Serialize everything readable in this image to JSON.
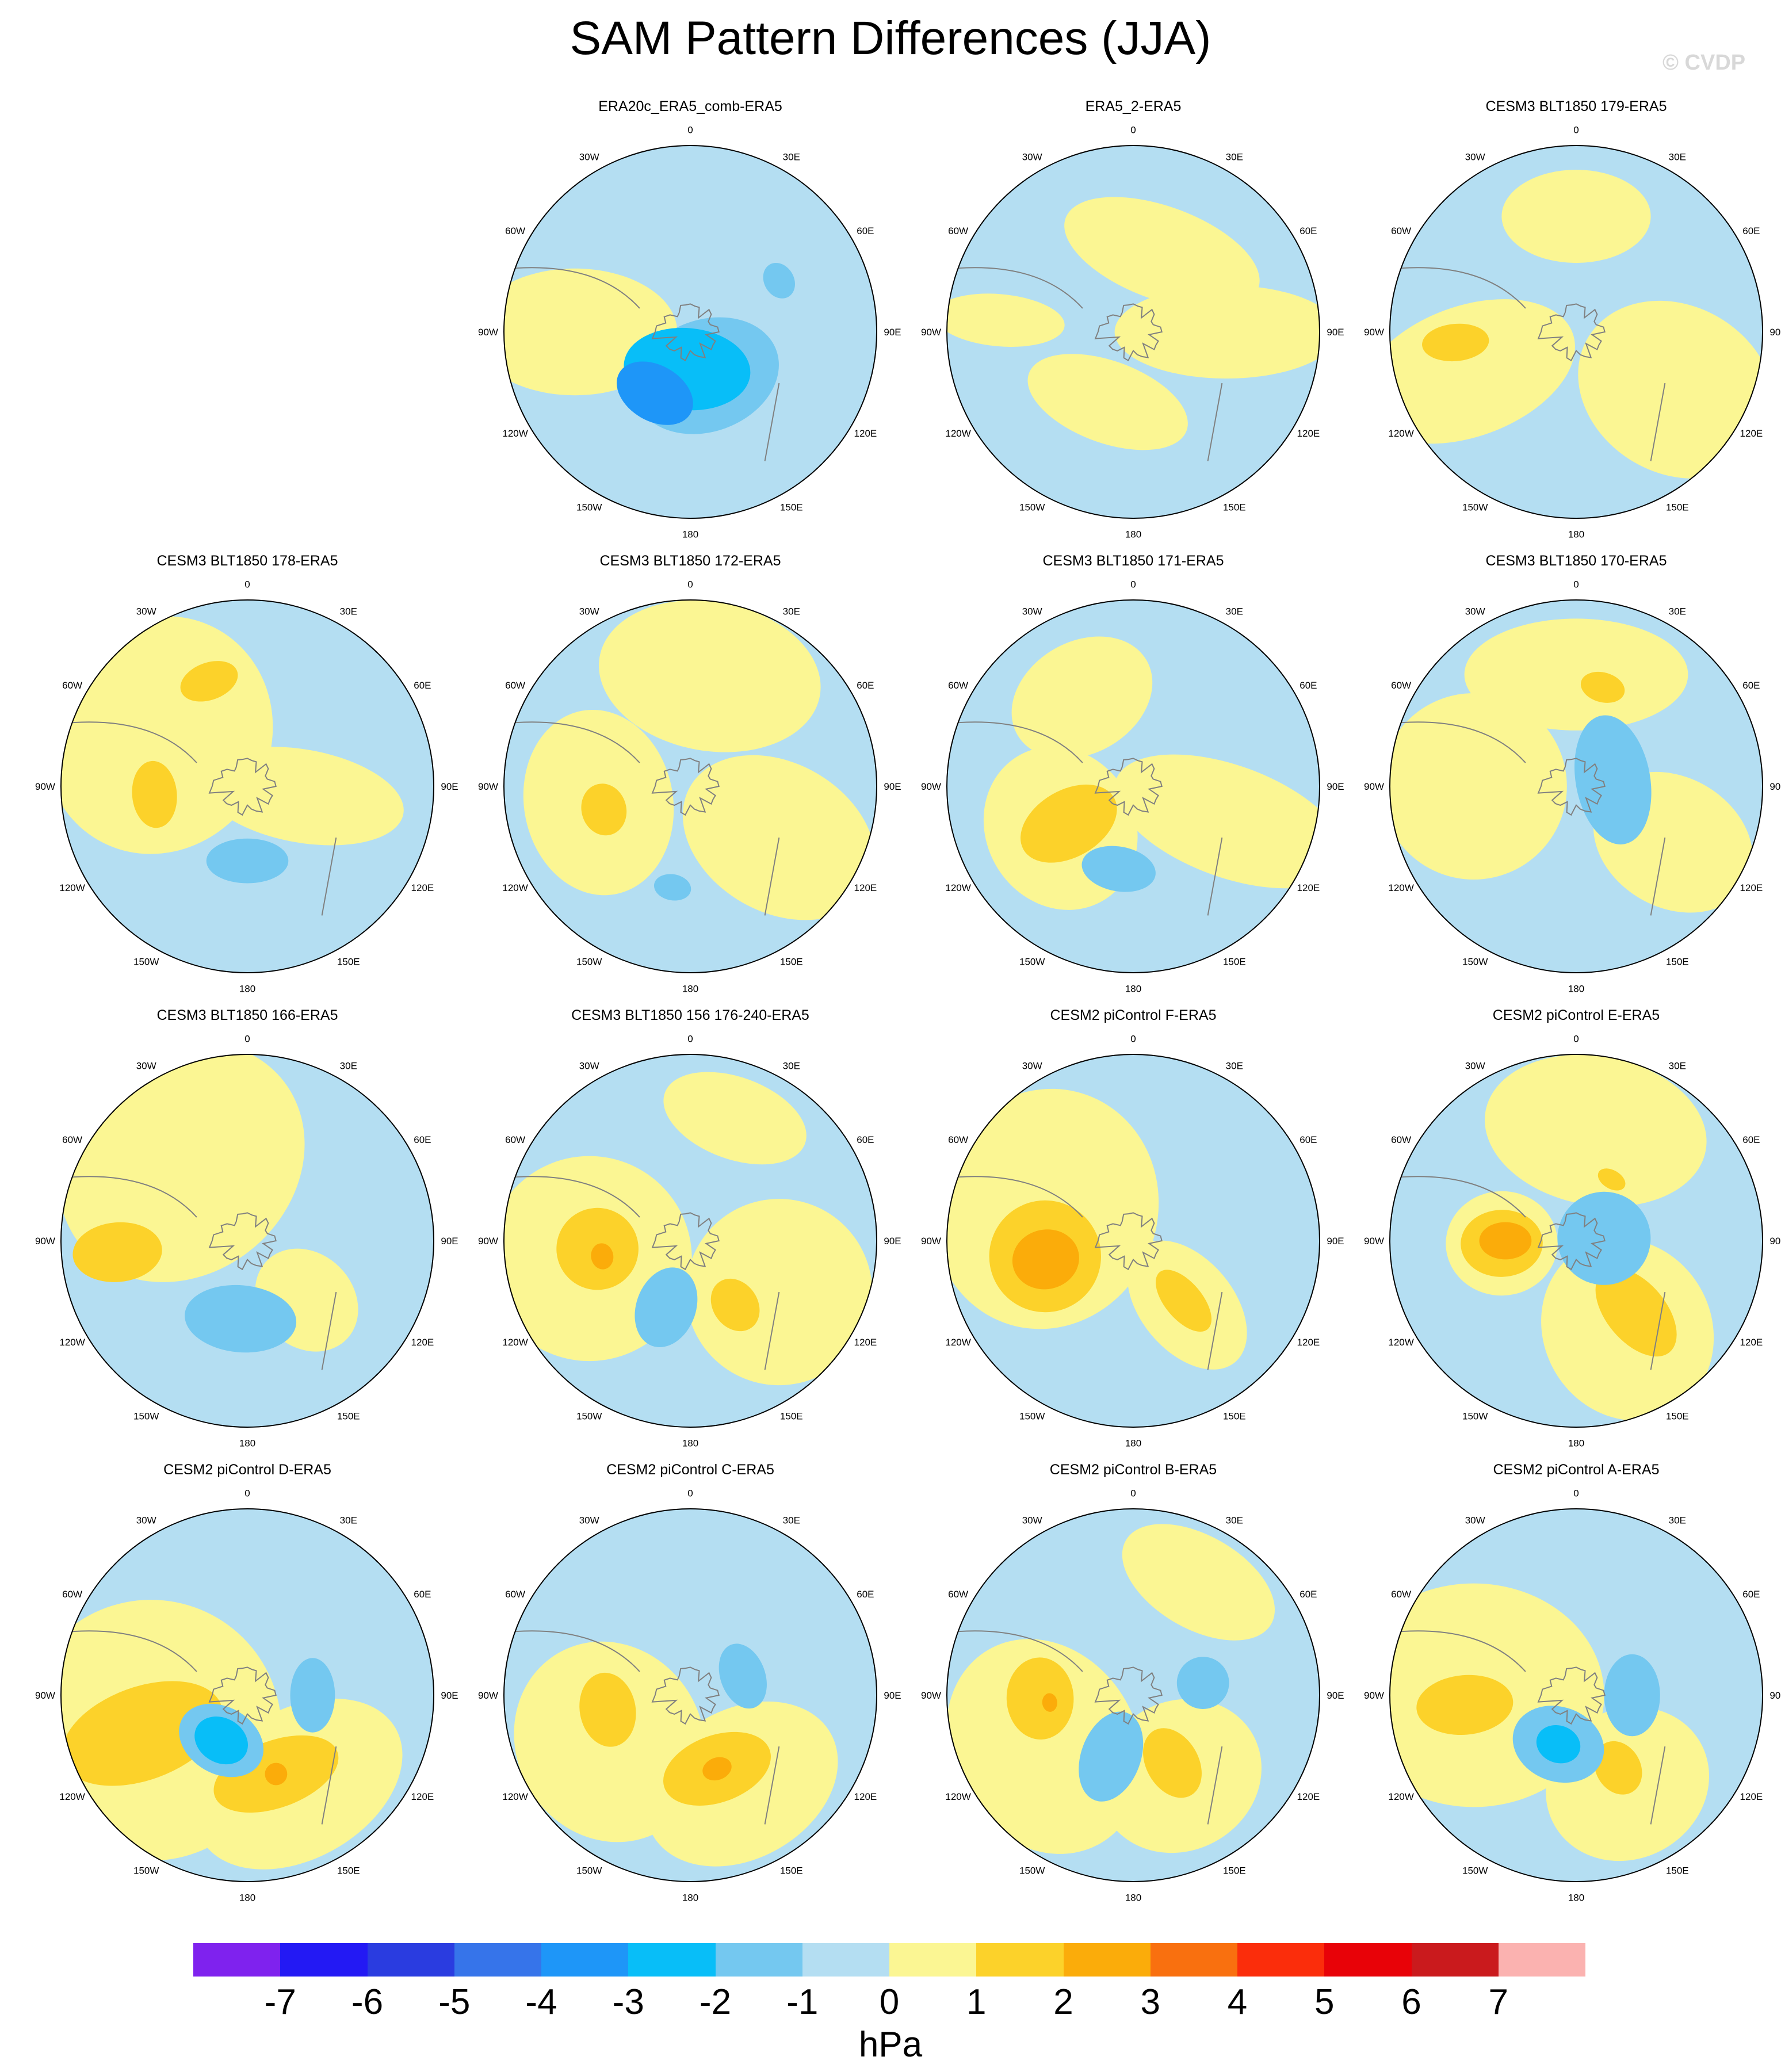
{
  "title": "SAM Pattern Differences (JJA)",
  "watermark": "© CVDP",
  "units": "hPa",
  "colors": {
    "levels": [
      "#7f22ee",
      "#2319f4",
      "#2a3ce0",
      "#3674ea",
      "#1e96f8",
      "#08bef8",
      "#74c8f0",
      "#b4def2",
      "#fbf693",
      "#fcd22a",
      "#fbac0a",
      "#f9700f",
      "#fb2d0b",
      "#e80208",
      "#ca1a1d",
      "#fbb2b0"
    ],
    "coast": "#808080",
    "border": "#000000"
  },
  "colorbar_ticks": [
    "-7",
    "-6",
    "-5",
    "-4",
    "-3",
    "-2",
    "-1",
    "0",
    "1",
    "2",
    "3",
    "4",
    "5",
    "6",
    "7"
  ],
  "map_labels": {
    "lon_0": "0",
    "lon_30e": "30E",
    "lon_60e": "60E",
    "lon_90e": "90E",
    "lon_120e": "120E",
    "lon_150e": "150E",
    "lon_180": "180",
    "lon_150w": "150W",
    "lon_120w": "120W",
    "lon_90w": "90W",
    "lon_60w": "60W",
    "lon_30w": "30W"
  },
  "panels": [
    {
      "title": "ERA20c_ERA5_comb-ERA5",
      "features": [
        {
          "lon": 270,
          "r": 0.62,
          "w": 0.34,
          "h": 0.55,
          "v": 0.5
        },
        {
          "lon": 160,
          "r": 0.25,
          "w": 0.4,
          "h": 0.3,
          "v": -1.5
        },
        {
          "lon": 185,
          "r": 0.2,
          "w": 0.34,
          "h": 0.22,
          "v": -2.5
        },
        {
          "lon": 210,
          "r": 0.38,
          "w": 0.22,
          "h": 0.15,
          "v": -3.4
        },
        {
          "lon": 60,
          "r": 0.55,
          "w": 0.1,
          "h": 0.08,
          "v": -1.5
        }
      ]
    },
    {
      "title": "ERA5_2-ERA5",
      "features": [
        {
          "lon": 20,
          "r": 0.45,
          "w": 0.55,
          "h": 0.25,
          "v": 0.5
        },
        {
          "lon": 90,
          "r": 0.5,
          "w": 0.25,
          "h": 0.6,
          "v": 0.5
        },
        {
          "lon": 200,
          "r": 0.4,
          "w": 0.45,
          "h": 0.22,
          "v": 0.5
        },
        {
          "lon": 275,
          "r": 0.72,
          "w": 0.14,
          "h": 0.35,
          "v": 0.5
        }
      ]
    },
    {
      "title": "CESM3 BLT1850 179-ERA5",
      "features": [
        {
          "lon": 0,
          "r": 0.62,
          "w": 0.4,
          "h": 0.25,
          "v": 0.5
        },
        {
          "lon": 120,
          "r": 0.62,
          "w": 0.45,
          "h": 0.55,
          "v": 0.5
        },
        {
          "lon": 250,
          "r": 0.62,
          "w": 0.35,
          "h": 0.6,
          "v": 0.5
        },
        {
          "lon": 265,
          "r": 0.65,
          "w": 0.1,
          "h": 0.18,
          "v": 1.5
        }
      ]
    },
    {
      "title": "CESM3 BLT1850 178-ERA5",
      "features": [
        {
          "lon": 300,
          "r": 0.55,
          "w": 0.65,
          "h": 0.6,
          "v": 0.5
        },
        {
          "lon": 100,
          "r": 0.3,
          "w": 0.25,
          "h": 0.55,
          "v": 0.5
        },
        {
          "lon": 340,
          "r": 0.6,
          "w": 0.16,
          "h": 0.1,
          "v": 1.5
        },
        {
          "lon": 265,
          "r": 0.5,
          "w": 0.18,
          "h": 0.12,
          "v": 1.5
        },
        {
          "lon": 180,
          "r": 0.4,
          "w": 0.22,
          "h": 0.12,
          "v": -1.5
        }
      ]
    },
    {
      "title": "CESM3 BLT1850 172-ERA5",
      "features": [
        {
          "lon": 10,
          "r": 0.6,
          "w": 0.6,
          "h": 0.4,
          "v": 0.5
        },
        {
          "lon": 120,
          "r": 0.55,
          "w": 0.4,
          "h": 0.55,
          "v": 0.5
        },
        {
          "lon": 260,
          "r": 0.5,
          "w": 0.5,
          "h": 0.4,
          "v": 0.5
        },
        {
          "lon": 255,
          "r": 0.48,
          "w": 0.14,
          "h": 0.12,
          "v": 1.5
        },
        {
          "lon": 190,
          "r": 0.55,
          "w": 0.1,
          "h": 0.07,
          "v": -1.5
        }
      ]
    },
    {
      "title": "CESM3 BLT1850 171-ERA5",
      "features": [
        {
          "lon": 330,
          "r": 0.55,
          "w": 0.4,
          "h": 0.3,
          "v": 0.5
        },
        {
          "lon": 110,
          "r": 0.55,
          "w": 0.3,
          "h": 0.65,
          "v": 0.5
        },
        {
          "lon": 240,
          "r": 0.45,
          "w": 0.45,
          "h": 0.4,
          "v": 0.5
        },
        {
          "lon": 240,
          "r": 0.4,
          "w": 0.18,
          "h": 0.28,
          "v": 1.5
        },
        {
          "lon": 190,
          "r": 0.45,
          "w": 0.2,
          "h": 0.12,
          "v": -1.5
        }
      ]
    },
    {
      "title": "CESM3 BLT1850 170-ERA5",
      "features": [
        {
          "lon": 0,
          "r": 0.6,
          "w": 0.6,
          "h": 0.3,
          "v": 0.5
        },
        {
          "lon": 270,
          "r": 0.55,
          "w": 0.5,
          "h": 0.5,
          "v": 0.5
        },
        {
          "lon": 120,
          "r": 0.6,
          "w": 0.35,
          "h": 0.45,
          "v": 0.5
        },
        {
          "lon": 15,
          "r": 0.55,
          "w": 0.12,
          "h": 0.08,
          "v": 1.5
        },
        {
          "lon": 80,
          "r": 0.2,
          "w": 0.35,
          "h": 0.2,
          "v": -1.5
        }
      ]
    },
    {
      "title": "CESM3 BLT1850 166-ERA5",
      "features": [
        {
          "lon": 320,
          "r": 0.55,
          "w": 0.7,
          "h": 0.6,
          "v": 0.5
        },
        {
          "lon": 135,
          "r": 0.45,
          "w": 0.25,
          "h": 0.3,
          "v": 0.5
        },
        {
          "lon": 265,
          "r": 0.7,
          "w": 0.16,
          "h": 0.24,
          "v": 1.5
        },
        {
          "lon": 185,
          "r": 0.42,
          "w": 0.3,
          "h": 0.18,
          "v": -1.5
        }
      ]
    },
    {
      "title": "CESM3 BLT1850 156 176-240-ERA5",
      "features": [
        {
          "lon": 260,
          "r": 0.55,
          "w": 0.55,
          "h": 0.55,
          "v": 0.5
        },
        {
          "lon": 120,
          "r": 0.55,
          "w": 0.5,
          "h": 0.5,
          "v": 0.5
        },
        {
          "lon": 20,
          "r": 0.7,
          "w": 0.4,
          "h": 0.22,
          "v": 0.5
        },
        {
          "lon": 265,
          "r": 0.5,
          "w": 0.22,
          "h": 0.22,
          "v": 1.5
        },
        {
          "lon": 260,
          "r": 0.48,
          "w": 0.07,
          "h": 0.06,
          "v": 2.5
        },
        {
          "lon": 145,
          "r": 0.42,
          "w": 0.12,
          "h": 0.15,
          "v": 1.5
        },
        {
          "lon": 200,
          "r": 0.38,
          "w": 0.16,
          "h": 0.22,
          "v": -1.5
        }
      ]
    },
    {
      "title": "CESM2 piControl F-ERA5",
      "features": [
        {
          "lon": 290,
          "r": 0.5,
          "w": 0.65,
          "h": 0.6,
          "v": 0.5
        },
        {
          "lon": 140,
          "r": 0.45,
          "w": 0.25,
          "h": 0.4,
          "v": 0.5
        },
        {
          "lon": 260,
          "r": 0.48,
          "w": 0.3,
          "h": 0.3,
          "v": 1.5
        },
        {
          "lon": 258,
          "r": 0.48,
          "w": 0.16,
          "h": 0.18,
          "v": 2.5
        },
        {
          "lon": 140,
          "r": 0.42,
          "w": 0.1,
          "h": 0.2,
          "v": 1.5
        }
      ]
    },
    {
      "title": "CESM2 piControl E-ERA5",
      "features": [
        {
          "lon": 10,
          "r": 0.6,
          "w": 0.6,
          "h": 0.4,
          "v": 0.5
        },
        {
          "lon": 150,
          "r": 0.55,
          "w": 0.45,
          "h": 0.5,
          "v": 0.5
        },
        {
          "lon": 268,
          "r": 0.4,
          "w": 0.28,
          "h": 0.3,
          "v": 0.5
        },
        {
          "lon": 268,
          "r": 0.4,
          "w": 0.18,
          "h": 0.22,
          "v": 1.5
        },
        {
          "lon": 270,
          "r": 0.38,
          "w": 0.1,
          "h": 0.14,
          "v": 2.5
        },
        {
          "lon": 140,
          "r": 0.5,
          "w": 0.16,
          "h": 0.28,
          "v": 1.5
        },
        {
          "lon": 30,
          "r": 0.38,
          "w": 0.08,
          "h": 0.05,
          "v": 1.5
        },
        {
          "lon": 85,
          "r": 0.15,
          "w": 0.25,
          "h": 0.25,
          "v": -1.5
        }
      ]
    },
    {
      "title": "CESM2 piControl D-ERA5",
      "features": [
        {
          "lon": 250,
          "r": 0.55,
          "w": 0.7,
          "h": 0.7,
          "v": 0.5
        },
        {
          "lon": 150,
          "r": 0.55,
          "w": 0.6,
          "h": 0.4,
          "v": 0.5
        },
        {
          "lon": 250,
          "r": 0.6,
          "w": 0.25,
          "h": 0.45,
          "v": 1.5
        },
        {
          "lon": 160,
          "r": 0.45,
          "w": 0.35,
          "h": 0.18,
          "v": 1.5
        },
        {
          "lon": 160,
          "r": 0.45,
          "w": 0.06,
          "h": 0.06,
          "v": 2.5
        },
        {
          "lon": 210,
          "r": 0.28,
          "w": 0.24,
          "h": 0.18,
          "v": -1.5
        },
        {
          "lon": 210,
          "r": 0.28,
          "w": 0.15,
          "h": 0.12,
          "v": -2.5
        },
        {
          "lon": 90,
          "r": 0.35,
          "w": 0.2,
          "h": 0.12,
          "v": -1.5
        }
      ]
    },
    {
      "title": "CESM2 piControl C-ERA5",
      "features": [
        {
          "lon": 240,
          "r": 0.5,
          "w": 0.55,
          "h": 0.5,
          "v": 0.5
        },
        {
          "lon": 150,
          "r": 0.55,
          "w": 0.55,
          "h": 0.4,
          "v": 0.5
        },
        {
          "lon": 260,
          "r": 0.45,
          "w": 0.2,
          "h": 0.15,
          "v": 1.5
        },
        {
          "lon": 160,
          "r": 0.42,
          "w": 0.3,
          "h": 0.18,
          "v": 1.5
        },
        {
          "lon": 160,
          "r": 0.42,
          "w": 0.08,
          "h": 0.06,
          "v": 2.5
        },
        {
          "lon": 70,
          "r": 0.3,
          "w": 0.18,
          "h": 0.12,
          "v": -1.5
        }
      ]
    },
    {
      "title": "CESM2 piControl B-ERA5",
      "features": [
        {
          "lon": 240,
          "r": 0.55,
          "w": 0.6,
          "h": 0.5,
          "v": 0.5
        },
        {
          "lon": 150,
          "r": 0.5,
          "w": 0.45,
          "h": 0.4,
          "v": 0.5
        },
        {
          "lon": 30,
          "r": 0.7,
          "w": 0.45,
          "h": 0.25,
          "v": 0.5
        },
        {
          "lon": 268,
          "r": 0.5,
          "w": 0.22,
          "h": 0.18,
          "v": 1.5
        },
        {
          "lon": 265,
          "r": 0.45,
          "w": 0.05,
          "h": 0.04,
          "v": 2.5
        },
        {
          "lon": 150,
          "r": 0.42,
          "w": 0.14,
          "h": 0.2,
          "v": 1.5
        },
        {
          "lon": 200,
          "r": 0.35,
          "w": 0.16,
          "h": 0.25,
          "v": -1.5
        },
        {
          "lon": 80,
          "r": 0.38,
          "w": 0.14,
          "h": 0.14,
          "v": -1.5
        }
      ]
    },
    {
      "title": "CESM2 piControl A-ERA5",
      "features": [
        {
          "lon": 270,
          "r": 0.55,
          "w": 0.6,
          "h": 0.7,
          "v": 0.5
        },
        {
          "lon": 150,
          "r": 0.55,
          "w": 0.45,
          "h": 0.4,
          "v": 0.5
        },
        {
          "lon": 265,
          "r": 0.6,
          "w": 0.16,
          "h": 0.26,
          "v": 1.5
        },
        {
          "lon": 150,
          "r": 0.45,
          "w": 0.12,
          "h": 0.15,
          "v": 1.5
        },
        {
          "lon": 200,
          "r": 0.28,
          "w": 0.25,
          "h": 0.2,
          "v": -1.5
        },
        {
          "lon": 200,
          "r": 0.28,
          "w": 0.12,
          "h": 0.1,
          "v": -2.5
        },
        {
          "lon": 90,
          "r": 0.3,
          "w": 0.22,
          "h": 0.15,
          "v": -1.5
        }
      ]
    }
  ]
}
